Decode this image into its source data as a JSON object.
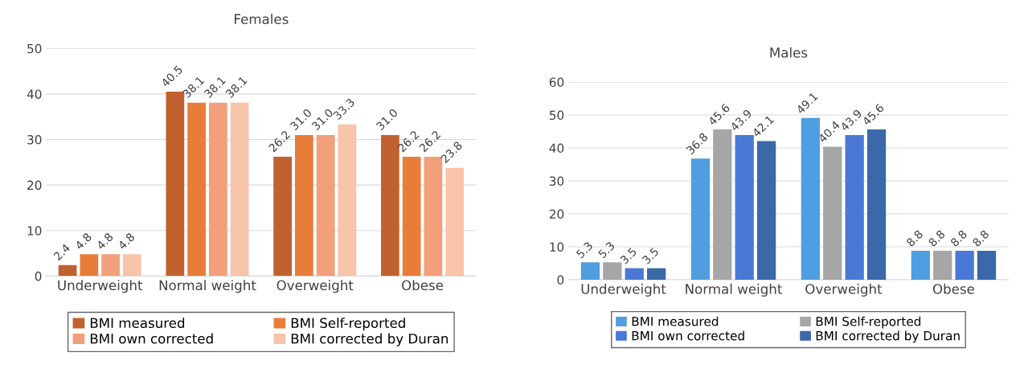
{
  "chart_data": [
    {
      "type": "bar",
      "title": "Females",
      "categories": [
        "Underweight",
        "Normal weight",
        "Overweight",
        "Obese"
      ],
      "ylim": [
        0,
        50
      ],
      "yticks": [
        0,
        10,
        20,
        30,
        40,
        50
      ],
      "grid": "y",
      "legend": "bottom",
      "series": [
        {
          "name": "BMI measured",
          "color": "#c0622f",
          "values": [
            2.4,
            40.5,
            26.2,
            31.0
          ],
          "value_labels": [
            "2.4",
            "40.5",
            "26.2",
            "31.0"
          ]
        },
        {
          "name": "BMI Self-reported",
          "color": "#e87d3a",
          "values": [
            4.8,
            38.1,
            31.0,
            26.2
          ],
          "value_labels": [
            "4.8",
            "38.1",
            "31.0",
            "26.2"
          ]
        },
        {
          "name": "BMI own corrected",
          "color": "#f29f7c",
          "values": [
            4.8,
            38.1,
            31.0,
            26.2
          ],
          "value_labels": [
            "4.8",
            "38.1",
            "31.0",
            "26.2"
          ]
        },
        {
          "name": "BMI corrected by Duran",
          "color": "#f8c4aa",
          "values": [
            4.8,
            38.1,
            33.3,
            23.8
          ],
          "value_labels": [
            "4.8",
            "38.1",
            "33.3",
            "23.8"
          ]
        }
      ]
    },
    {
      "type": "bar",
      "title": "Males",
      "categories": [
        "Underweight",
        "Normal weight",
        "Overweight",
        "Obese"
      ],
      "ylim": [
        0,
        60
      ],
      "yticks": [
        0,
        10,
        20,
        30,
        40,
        50,
        60
      ],
      "grid": "y",
      "legend": "bottom",
      "series": [
        {
          "name": "BMI measured",
          "color": "#4f9ee0",
          "values": [
            5.3,
            36.8,
            49.1,
            8.8
          ],
          "value_labels": [
            "5.3",
            "36.8",
            "49.1",
            "8.8"
          ]
        },
        {
          "name": "BMI Self-reported",
          "color": "#a6a6a6",
          "values": [
            5.3,
            45.6,
            40.4,
            8.8
          ],
          "value_labels": [
            "5.3",
            "45.6",
            "40.4",
            "8.8"
          ]
        },
        {
          "name": "BMI own corrected",
          "color": "#4a78d6",
          "values": [
            3.5,
            43.9,
            43.9,
            8.8
          ],
          "value_labels": [
            "3.5",
            "43.9",
            "43.9",
            "8.8"
          ]
        },
        {
          "name": "BMI corrected by Duran",
          "color": "#3a68a8",
          "values": [
            3.5,
            42.1,
            45.6,
            8.8
          ],
          "value_labels": [
            "3.5",
            "42.1",
            "45.6",
            "8.8"
          ]
        }
      ]
    }
  ]
}
